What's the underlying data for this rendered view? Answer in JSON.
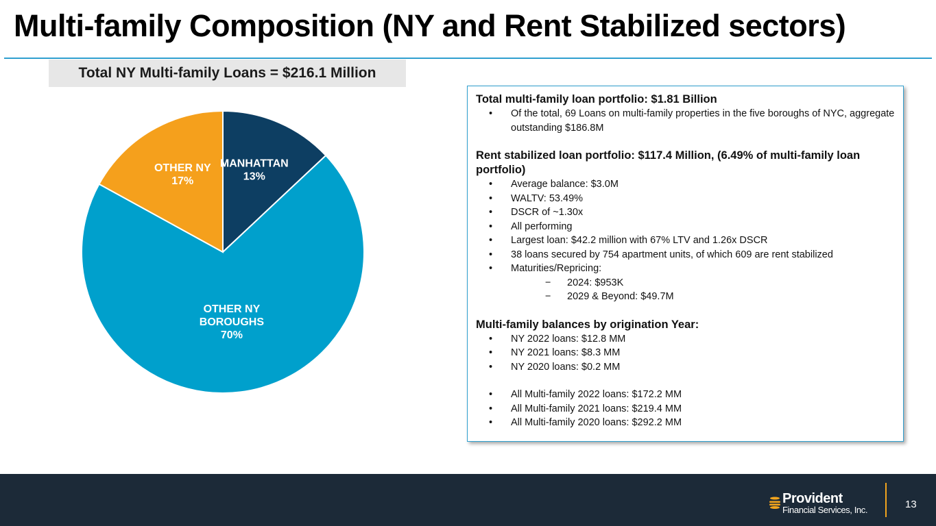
{
  "slide": {
    "title": "Multi-family Composition (NY and Rent Stabilized sectors)",
    "page_number": "13"
  },
  "chart_header": "Total NY Multi-family Loans = $216.1 Million",
  "chart_data": {
    "type": "pie",
    "title": "Total NY Multi-family Loans = $216.1 Million",
    "slices": [
      {
        "label_lines": [
          "MANHATTAN"
        ],
        "pct_label": "13%",
        "value": 13,
        "color": "#0d3e62"
      },
      {
        "label_lines": [
          "OTHER NY",
          "BOROUGHS"
        ],
        "pct_label": "70%",
        "value": 70,
        "color": "#00a0cc"
      },
      {
        "label_lines": [
          "OTHER NY"
        ],
        "pct_label": "17%",
        "value": 17,
        "color": "#f5a01c"
      }
    ],
    "start_angle_deg": 0,
    "direction": "clockwise",
    "slice_border_color": "#ffffff"
  },
  "info": {
    "sections": [
      {
        "heading": "Total multi-family loan portfolio: $1.81 Billion",
        "items": [
          {
            "level": 1,
            "text": "Of the total, 69 Loans on multi-family properties in the five boroughs of NYC, aggregate outstanding $186.8M"
          }
        ]
      },
      {
        "heading": "Rent stabilized loan portfolio:  $117.4 Million, (6.49% of multi-family loan portfolio)",
        "items": [
          {
            "level": 1,
            "text": "Average balance: $3.0M"
          },
          {
            "level": 1,
            "text": "WALTV:  53.49%"
          },
          {
            "level": 1,
            "text": "DSCR of ~1.30x"
          },
          {
            "level": 1,
            "text": "All performing"
          },
          {
            "level": 1,
            "text": "Largest loan: $42.2 million with 67% LTV and 1.26x DSCR"
          },
          {
            "level": 1,
            "text": "38 loans secured by 754 apartment units, of which 609 are rent stabilized"
          },
          {
            "level": 1,
            "text": "Maturities/Repricing:"
          },
          {
            "level": 2,
            "text": "2024: $953K"
          },
          {
            "level": 2,
            "text": "2029 & Beyond: $49.7M"
          }
        ]
      },
      {
        "heading": "Multi-family balances by origination Year:",
        "items": [
          {
            "level": 1,
            "text": "NY 2022 loans: $12.8 MM"
          },
          {
            "level": 1,
            "text": "NY 2021 loans: $8.3 MM"
          },
          {
            "level": 1,
            "text": "NY 2020 loans: $0.2 MM"
          },
          {
            "level": 0,
            "text": ""
          },
          {
            "level": 1,
            "text": "All Multi-family 2022 loans: $172.2 MM"
          },
          {
            "level": 1,
            "text": "All Multi-family 2021 loans: $219.4 MM"
          },
          {
            "level": 1,
            "text": "All Multi-family 2020 loans: $292.2 MM"
          }
        ]
      }
    ]
  },
  "footer": {
    "logo_name": "Provident",
    "logo_sub": "Financial Services, Inc.",
    "logo_icon": "provident-lantern-icon",
    "background_color": "#1c2a38",
    "accent_color": "#f3a51d"
  }
}
